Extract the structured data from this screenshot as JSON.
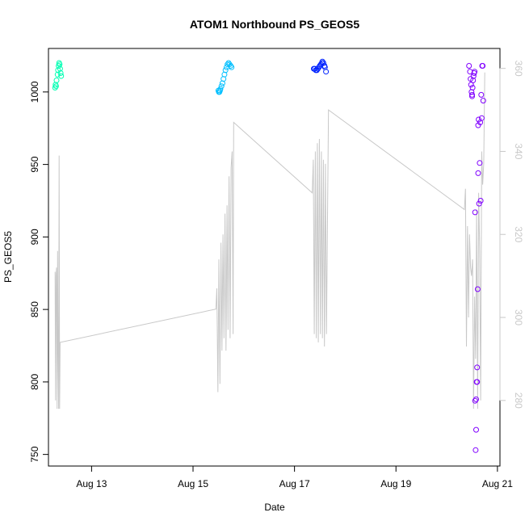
{
  "chart_data": {
    "type": "scatter",
    "title": "ATOM1 Northbound PS_GEOS5",
    "xlabel": "Date",
    "ylabel": "PS_GEOS5",
    "x_range": [
      12.15,
      21.05
    ],
    "ylim": [
      742,
      1030
    ],
    "y2lim": [
      264.2,
      364.8
    ],
    "x_ticks": [
      {
        "value": 13,
        "label": "Aug 13"
      },
      {
        "value": 15,
        "label": "Aug 15"
      },
      {
        "value": 17,
        "label": "Aug 17"
      },
      {
        "value": 19,
        "label": "Aug 19"
      },
      {
        "value": 21,
        "label": "Aug 21"
      }
    ],
    "y_ticks": [
      750,
      800,
      850,
      900,
      950,
      1000
    ],
    "y2_ticks": [
      280,
      300,
      320,
      340,
      360
    ],
    "grid": false,
    "right_axis_color": "#c8c8c8",
    "line_color": "#c8c8c8",
    "series": [
      {
        "color": "#00ffb3",
        "points": [
          [
            12.28,
            1003
          ],
          [
            12.29,
            1005
          ],
          [
            12.3,
            1004
          ],
          [
            12.31,
            1008
          ],
          [
            12.33,
            1012
          ],
          [
            12.34,
            1015
          ],
          [
            12.35,
            1018
          ],
          [
            12.36,
            1020
          ],
          [
            12.37,
            1019
          ],
          [
            12.38,
            1016
          ],
          [
            12.39,
            1013
          ],
          [
            12.4,
            1011
          ]
        ]
      },
      {
        "color": "#00bfff",
        "points": [
          [
            15.5,
            1001
          ],
          [
            15.51,
            1000
          ],
          [
            15.52,
            1000
          ],
          [
            15.53,
            1001
          ],
          [
            15.54,
            1002
          ],
          [
            15.56,
            1004
          ],
          [
            15.58,
            1006
          ],
          [
            15.6,
            1009
          ],
          [
            15.62,
            1012
          ],
          [
            15.64,
            1015
          ],
          [
            15.66,
            1017
          ],
          [
            15.68,
            1019
          ],
          [
            15.7,
            1020
          ],
          [
            15.72,
            1019
          ],
          [
            15.74,
            1018
          ],
          [
            15.76,
            1017
          ]
        ]
      },
      {
        "color": "#0022ff",
        "points": [
          [
            17.38,
            1016
          ],
          [
            17.4,
            1016
          ],
          [
            17.42,
            1015
          ],
          [
            17.44,
            1015
          ],
          [
            17.46,
            1016
          ],
          [
            17.48,
            1017
          ],
          [
            17.5,
            1018
          ],
          [
            17.52,
            1019
          ],
          [
            17.54,
            1020
          ],
          [
            17.55,
            1021
          ],
          [
            17.57,
            1020
          ],
          [
            17.59,
            1018
          ],
          [
            17.6,
            1017
          ],
          [
            17.62,
            1014
          ]
        ]
      },
      {
        "color": "#8000ff",
        "points": [
          [
            20.44,
            1018
          ],
          [
            20.46,
            1014
          ],
          [
            20.47,
            1009
          ],
          [
            20.48,
            1005
          ],
          [
            20.49,
            1000
          ],
          [
            20.5,
            998
          ],
          [
            20.5,
            997
          ],
          [
            20.51,
            1003
          ],
          [
            20.52,
            1008
          ],
          [
            20.53,
            1011
          ],
          [
            20.54,
            1013
          ],
          [
            20.55,
            1014
          ],
          [
            20.56,
            917
          ],
          [
            20.56,
            787
          ],
          [
            20.57,
            753
          ],
          [
            20.58,
            767
          ],
          [
            20.58,
            788
          ],
          [
            20.59,
            800
          ],
          [
            20.6,
            810
          ],
          [
            20.6,
            800
          ],
          [
            20.61,
            864
          ],
          [
            20.62,
            944
          ],
          [
            20.62,
            977
          ],
          [
            20.63,
            981
          ],
          [
            20.64,
            923
          ],
          [
            20.65,
            951
          ],
          [
            20.66,
            979
          ],
          [
            20.67,
            925
          ],
          [
            20.68,
            998
          ],
          [
            20.69,
            982
          ],
          [
            20.7,
            1018
          ],
          [
            20.71,
            1018
          ],
          [
            20.72,
            994
          ]
        ]
      }
    ],
    "secondary_line": {
      "points": [
        [
          12.28,
          311
        ],
        [
          12.29,
          280
        ],
        [
          12.3,
          310
        ],
        [
          12.31,
          312
        ],
        [
          12.32,
          278
        ],
        [
          12.33,
          316
        ],
        [
          12.34,
          292
        ],
        [
          12.35,
          278
        ],
        [
          12.36,
          339
        ],
        [
          12.37,
          278
        ],
        [
          12.38,
          294
        ],
        [
          15.45,
          302
        ],
        [
          15.47,
          307
        ],
        [
          15.49,
          282
        ],
        [
          15.51,
          314
        ],
        [
          15.53,
          284
        ],
        [
          15.55,
          318
        ],
        [
          15.57,
          292
        ],
        [
          15.59,
          320
        ],
        [
          15.61,
          295
        ],
        [
          15.63,
          325
        ],
        [
          15.65,
          292
        ],
        [
          15.67,
          327
        ],
        [
          15.69,
          297
        ],
        [
          15.71,
          334
        ],
        [
          15.73,
          295
        ],
        [
          15.75,
          336
        ],
        [
          15.77,
          340
        ],
        [
          15.79,
          296
        ],
        [
          15.8,
          347
        ],
        [
          17.35,
          330
        ],
        [
          17.37,
          338
        ],
        [
          17.39,
          296
        ],
        [
          17.41,
          340
        ],
        [
          17.43,
          295
        ],
        [
          17.45,
          342
        ],
        [
          17.47,
          294
        ],
        [
          17.49,
          343
        ],
        [
          17.51,
          296
        ],
        [
          17.53,
          340
        ],
        [
          17.55,
          295
        ],
        [
          17.57,
          338
        ],
        [
          17.59,
          293
        ],
        [
          17.61,
          337
        ],
        [
          17.63,
          296
        ],
        [
          17.67,
          350
        ],
        [
          20.35,
          326
        ],
        [
          20.37,
          331
        ],
        [
          20.39,
          293
        ],
        [
          20.41,
          322
        ],
        [
          20.43,
          300
        ],
        [
          20.45,
          320
        ],
        [
          20.47,
          312
        ],
        [
          20.49,
          310
        ],
        [
          20.51,
          314
        ],
        [
          20.53,
          278
        ],
        [
          20.55,
          305
        ],
        [
          20.57,
          290
        ],
        [
          20.59,
          326
        ],
        [
          20.61,
          278
        ],
        [
          20.63,
          330
        ],
        [
          20.65,
          316
        ],
        [
          20.67,
          280
        ],
        [
          20.69,
          340
        ],
        [
          20.71,
          332
        ],
        [
          20.73,
          337
        ],
        [
          20.75,
          359
        ]
      ]
    }
  }
}
